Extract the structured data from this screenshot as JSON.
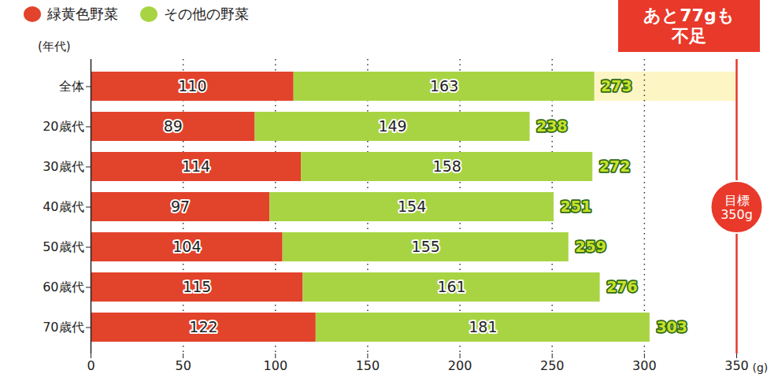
{
  "chart_data": {
    "type": "bar",
    "orientation": "horizontal",
    "stacked": true,
    "data_labels": true,
    "categories": [
      "全体",
      "20歳代",
      "30歳代",
      "40歳代",
      "50歳代",
      "60歳代",
      "70歳代"
    ],
    "series": [
      {
        "name": "緑黄色野菜",
        "color": "#e2432b",
        "values": [
          110,
          89,
          114,
          97,
          104,
          115,
          122
        ]
      },
      {
        "name": "その他の野菜",
        "color": "#a8d444",
        "values": [
          163,
          149,
          158,
          154,
          155,
          161,
          181
        ]
      }
    ],
    "totals": [
      273,
      238,
      272,
      251,
      259,
      276,
      303
    ],
    "x_label": "(g)",
    "y_label": "(年代)",
    "xlim": [
      0,
      350
    ],
    "xticks": [
      0,
      50,
      100,
      150,
      200,
      250,
      300,
      350
    ],
    "grid": true,
    "legend": "top-left",
    "target": {
      "value": 350,
      "label": [
        "目標",
        "350g"
      ]
    },
    "annotation": [
      "あと77gも",
      "不足"
    ]
  }
}
